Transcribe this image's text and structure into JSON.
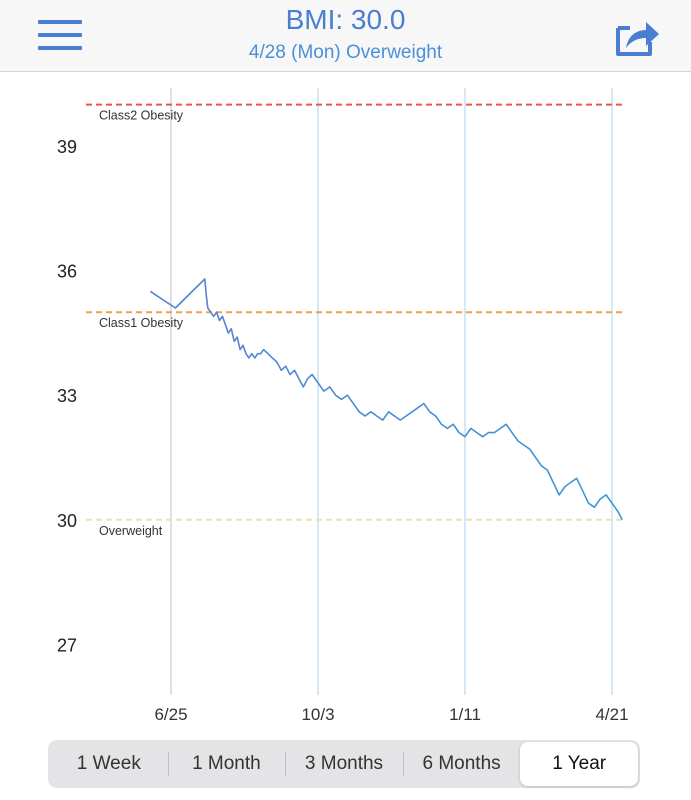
{
  "header": {
    "title": "BMI: 30.0",
    "subtitle": "4/28 (Mon) Overweight",
    "menu_icon": "hamburger-menu-icon",
    "share_icon": "share-icon"
  },
  "chart_data": {
    "type": "line",
    "x_tick_labels": [
      "6/25",
      "10/3",
      "1/11",
      "4/21"
    ],
    "y_ticks": [
      27,
      30,
      33,
      36,
      39
    ],
    "ylim": [
      25.9,
      40.4
    ],
    "grid": "vertical lines at x ticks",
    "thresholds": [
      {
        "label": "Class2 Obesity",
        "value": 40,
        "color": "#e8554a"
      },
      {
        "label": "Class1 Obesity",
        "value": 35,
        "color": "#f0a24a"
      },
      {
        "label": "Overweight",
        "value": 30,
        "color": "#e9e3b0"
      }
    ],
    "series": [
      {
        "color": "#4a90d9",
        "x": [
          "6/11",
          "6/28",
          "7/18",
          "7/19",
          "7/20",
          "7/22",
          "7/24",
          "7/26",
          "7/28",
          "7/30",
          "8/1",
          "8/3",
          "8/5",
          "8/7",
          "8/9",
          "8/11",
          "8/13",
          "8/15",
          "8/17",
          "8/19",
          "8/21",
          "8/23",
          "8/25",
          "8/27",
          "8/30",
          "9/2",
          "9/5",
          "9/8",
          "9/11",
          "9/14",
          "9/17",
          "9/20",
          "9/23",
          "9/26",
          "9/29",
          "10/3",
          "10/7",
          "10/11",
          "10/15",
          "10/19",
          "10/23",
          "10/27",
          "10/31",
          "11/4",
          "11/8",
          "11/12",
          "11/16",
          "11/20",
          "11/24",
          "11/28",
          "12/2",
          "12/6",
          "12/10",
          "12/14",
          "12/18",
          "12/22",
          "12/26",
          "12/30",
          "1/3",
          "1/7",
          "1/11",
          "1/15",
          "1/19",
          "1/23",
          "1/27",
          "1/31",
          "2/4",
          "2/8",
          "2/12",
          "2/16",
          "2/20",
          "2/24",
          "2/28",
          "3/4",
          "3/8",
          "3/12",
          "3/16",
          "3/20",
          "3/24",
          "3/28",
          "4/1",
          "4/5",
          "4/9",
          "4/13",
          "4/17",
          "4/21",
          "4/25",
          "4/28"
        ],
        "values": [
          35.5,
          35.1,
          35.8,
          35.4,
          35.1,
          35.0,
          34.9,
          35.0,
          34.8,
          34.9,
          34.7,
          34.5,
          34.6,
          34.3,
          34.4,
          34.1,
          34.2,
          34.0,
          33.9,
          34.0,
          33.9,
          34.0,
          34.0,
          34.1,
          34.0,
          33.9,
          33.8,
          33.6,
          33.7,
          33.5,
          33.6,
          33.4,
          33.2,
          33.4,
          33.5,
          33.3,
          33.1,
          33.2,
          33.0,
          32.9,
          33.0,
          32.8,
          32.6,
          32.5,
          32.6,
          32.5,
          32.4,
          32.6,
          32.5,
          32.4,
          32.5,
          32.6,
          32.7,
          32.8,
          32.6,
          32.5,
          32.3,
          32.2,
          32.3,
          32.1,
          32.0,
          32.2,
          32.1,
          32.0,
          32.1,
          32.1,
          32.2,
          32.3,
          32.1,
          31.9,
          31.8,
          31.7,
          31.5,
          31.3,
          31.2,
          30.9,
          30.6,
          30.8,
          30.9,
          31.0,
          30.7,
          30.4,
          30.3,
          30.5,
          30.6,
          30.4,
          30.2,
          30.0
        ]
      }
    ]
  },
  "tabs": [
    {
      "label": "1 Week",
      "selected": false
    },
    {
      "label": "1 Month",
      "selected": false
    },
    {
      "label": "3 Months",
      "selected": false
    },
    {
      "label": "6 Months",
      "selected": false
    },
    {
      "label": "1 Year",
      "selected": true
    }
  ]
}
